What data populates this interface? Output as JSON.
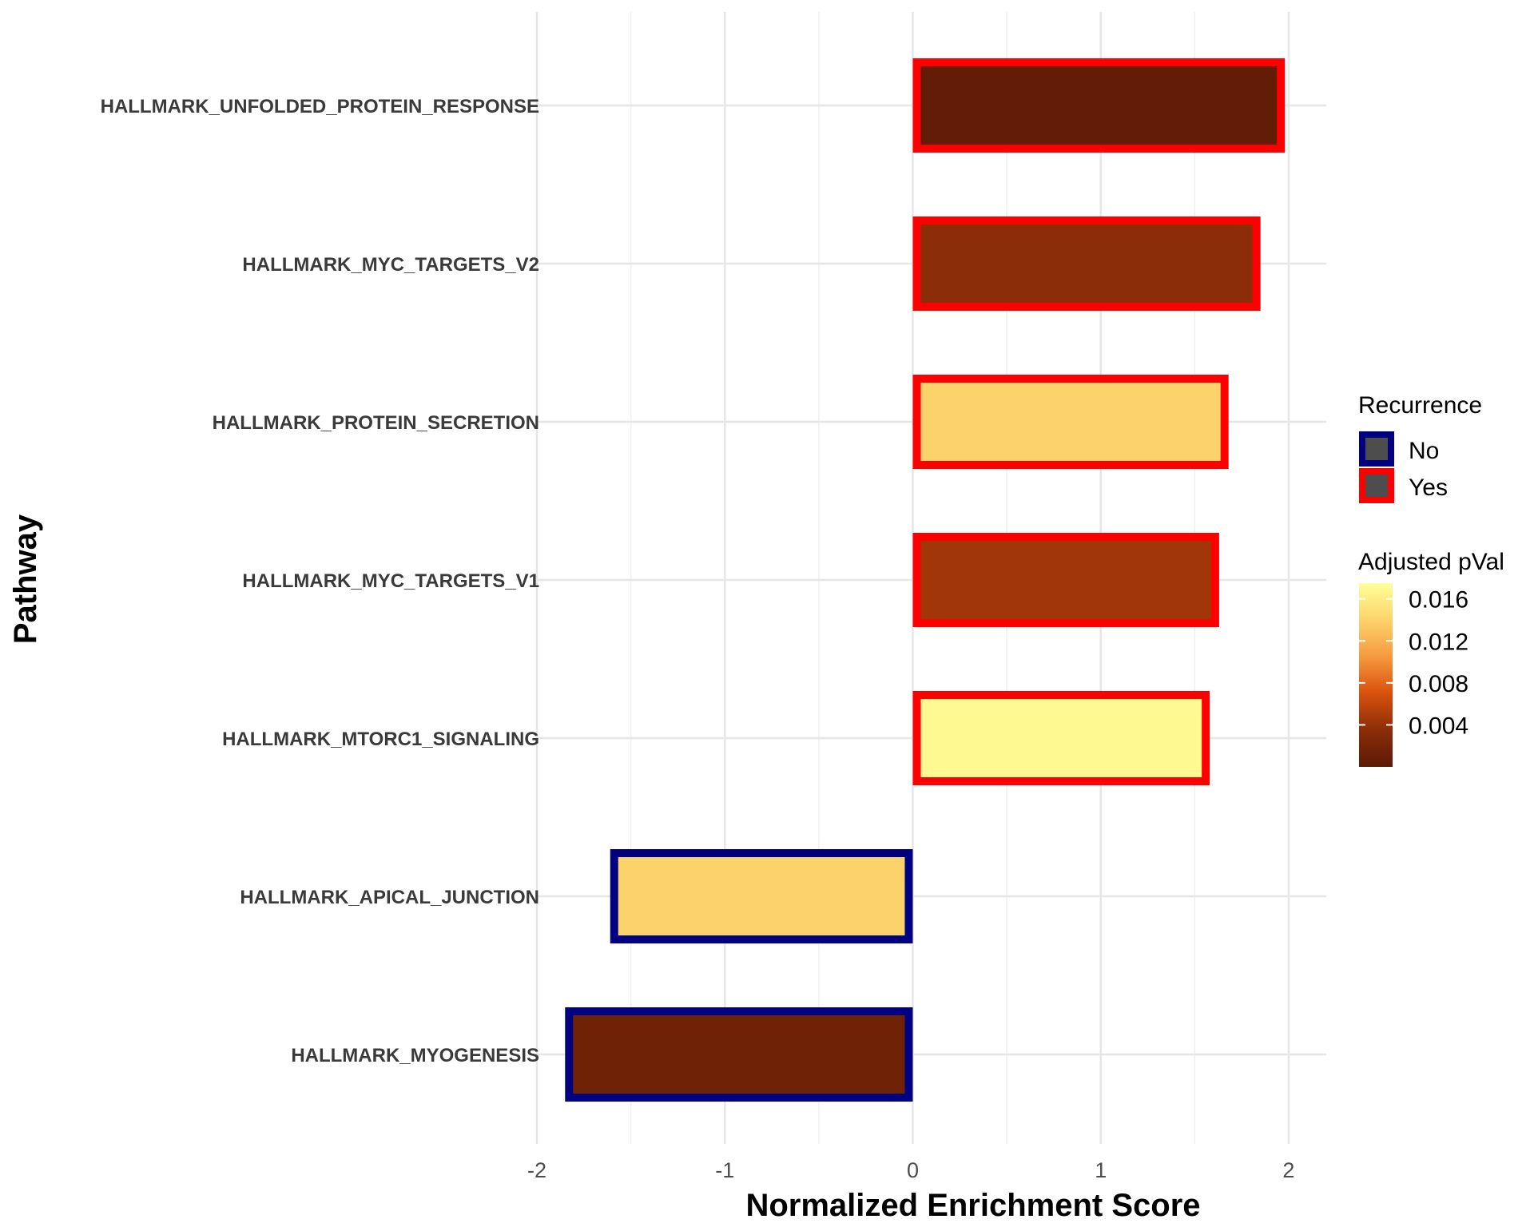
{
  "chart_data": {
    "type": "bar",
    "orientation": "horizontal",
    "xlabel": "Normalized Enrichment Score",
    "ylabel": "Pathway",
    "xlim": [
      -2.0,
      2.2
    ],
    "xticks": [
      -2,
      -1,
      0,
      1,
      2
    ],
    "grid": true,
    "categories": [
      "HALLMARK_UNFOLDED_PROTEIN_RESPONSE",
      "HALLMARK_MYC_TARGETS_V2",
      "HALLMARK_PROTEIN_SECRETION",
      "HALLMARK_MYC_TARGETS_V1",
      "HALLMARK_MTORC1_SIGNALING",
      "HALLMARK_APICAL_JUNCTION",
      "HALLMARK_MYOGENESIS"
    ],
    "values": [
      1.98,
      1.85,
      1.68,
      1.63,
      1.58,
      -1.61,
      -1.85
    ],
    "adjusted_pval": [
      0.0005,
      0.0035,
      0.014,
      0.0045,
      0.017,
      0.014,
      0.0015
    ],
    "recurrence": [
      "Yes",
      "Yes",
      "Yes",
      "Yes",
      "Yes",
      "No",
      "No"
    ],
    "legend": {
      "placement": "right",
      "recurrence": {
        "title": "Recurrence",
        "items": [
          {
            "label": "No",
            "color": "#000080"
          },
          {
            "label": "Yes",
            "color": "#ff0000"
          }
        ]
      },
      "pval": {
        "title": "Adjusted pVal",
        "range": [
          0.0,
          0.0175
        ],
        "ticks": [
          "0.016",
          "0.012",
          "0.008",
          "0.004"
        ],
        "tick_values": [
          0.016,
          0.012,
          0.008,
          0.004
        ],
        "colors": [
          "#5c1a06",
          "#8b2d08",
          "#d9510d",
          "#f59a3f",
          "#fcd36b",
          "#ffff99"
        ]
      }
    }
  }
}
